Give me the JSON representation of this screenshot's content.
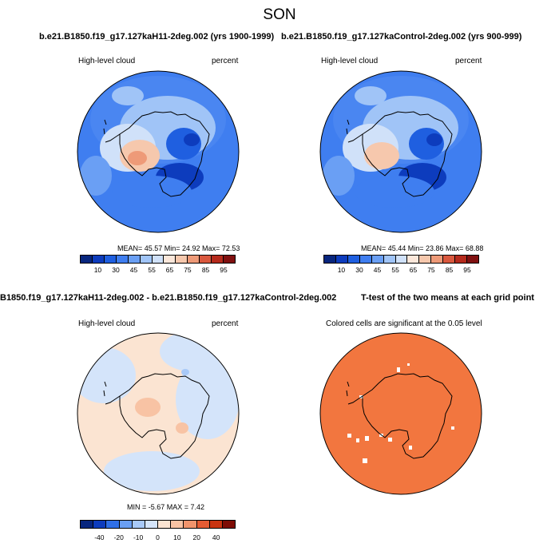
{
  "season": "SON",
  "panels": [
    {
      "title": "b.e21.B1850.f19_g17.127kaH11-2deg.002 (yrs 1900-1999)",
      "left_label": "High-level cloud",
      "right_label": "percent",
      "stats": "MEAN= 45.57  Min= 24.92  Max= 72.53",
      "colorbar_labels": [
        "10",
        "30",
        "45",
        "55",
        "65",
        "75",
        "85",
        "95"
      ]
    },
    {
      "title": "b.e21.B1850.f19_g17.127kaControl-2deg.002 (yrs 900-999)",
      "left_label": "High-level cloud",
      "right_label": "percent",
      "stats": "MEAN= 45.44  Min= 23.86  Max= 68.88",
      "colorbar_labels": [
        "10",
        "30",
        "45",
        "55",
        "65",
        "75",
        "85",
        "95"
      ]
    },
    {
      "title": "B1850.f19_g17.127kaH11-2deg.002 - b.e21.B1850.f19_g17.127kaControl-2deg.002",
      "left_label": "High-level cloud",
      "right_label": "percent",
      "stats": "MIN =  -5.67 MAX =   7.42",
      "colorbar_labels": [
        "-40",
        "-20",
        "-10",
        "0",
        "10",
        "20",
        "40"
      ]
    },
    {
      "title": "T-test of the two means at each grid point",
      "note": "Colored cells are significant at the 0.05 level"
    }
  ],
  "colors": {
    "abs_scale": [
      "#08267e",
      "#0d3cbd",
      "#1f5fe0",
      "#3f7ef0",
      "#6a9ff4",
      "#a0c4f7",
      "#d0e1f9",
      "#fbe7da",
      "#f6c8ad",
      "#ee9a78",
      "#d9583e",
      "#b52a1c",
      "#801010"
    ],
    "diff_scale": [
      "#08267e",
      "#0d3cbd",
      "#2f6fe6",
      "#6a9ff4",
      "#a8c9f8",
      "#d4e4fa",
      "#fbe4d2",
      "#f8c3a4",
      "#f1946c",
      "#e45b33",
      "#c93411",
      "#7e0c04"
    ],
    "significant": "#f2763f"
  }
}
